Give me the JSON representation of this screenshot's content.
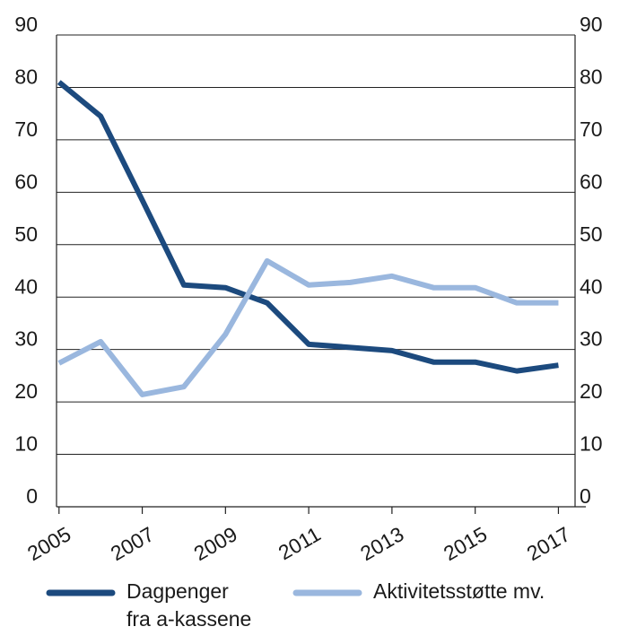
{
  "chart_data": {
    "type": "line",
    "x": [
      2005,
      2006,
      2007,
      2008,
      2009,
      2010,
      2011,
      2012,
      2013,
      2014,
      2015,
      2016,
      2017
    ],
    "xlim": [
      2004.94,
      2017.4
    ],
    "xticks": [
      2005,
      2007,
      2009,
      2011,
      2013,
      2015,
      2017
    ],
    "ylim": [
      0,
      90
    ],
    "yticks": [
      0,
      10,
      20,
      30,
      40,
      50,
      60,
      70,
      80,
      90
    ],
    "y2lim": [
      0,
      90
    ],
    "y2ticks": [
      0,
      10,
      20,
      30,
      40,
      50,
      60,
      70,
      80,
      90
    ],
    "grid": true,
    "legend": "bottom",
    "series": [
      {
        "name": "Dagpenger fra a-kassene",
        "color": "#1c4a7e",
        "values": [
          81,
          74.5,
          58.5,
          42.3,
          41.8,
          38.9,
          31,
          30.4,
          29.8,
          27.6,
          27.6,
          25.9,
          27
        ]
      },
      {
        "name": "Aktivitetsstøtte mv.",
        "color": "#9ab7de",
        "values": [
          27.4,
          31.5,
          21.4,
          22.9,
          32.9,
          46.9,
          42.3,
          42.8,
          44,
          41.8,
          41.8,
          38.9,
          38.9
        ]
      }
    ]
  }
}
